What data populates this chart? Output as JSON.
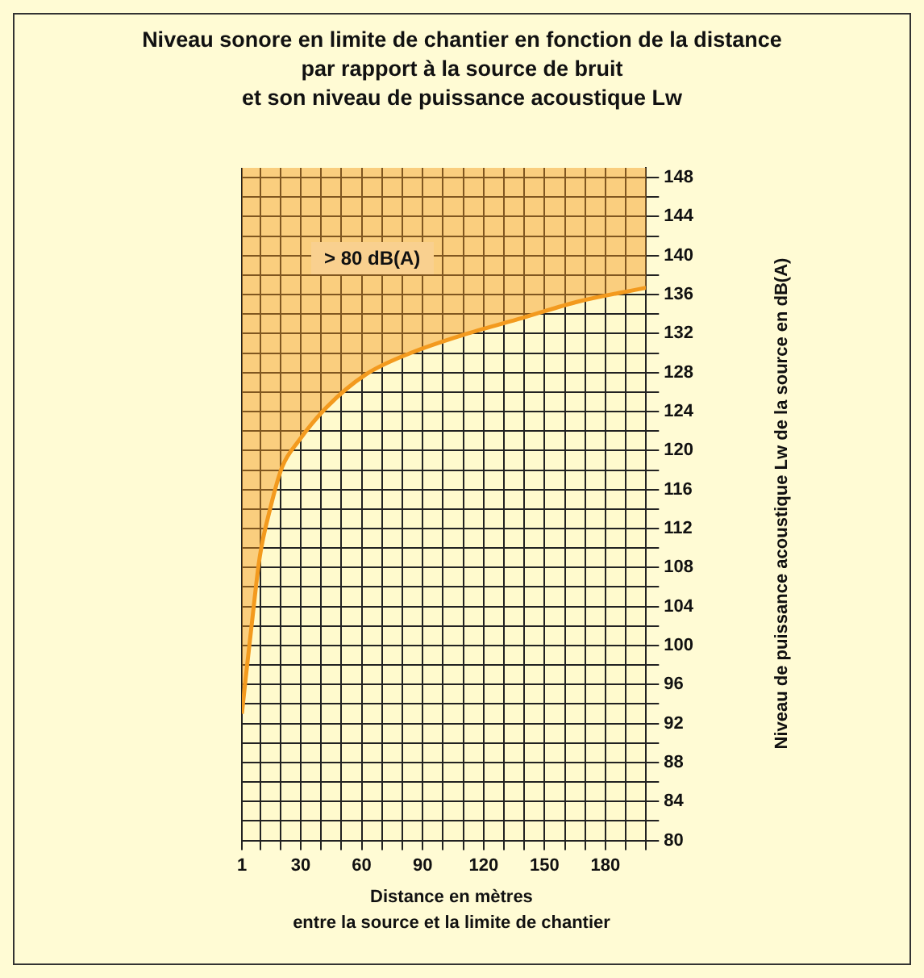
{
  "chart_data": {
    "type": "line",
    "title": "Niveau sonore en limite de chantier en fonction de la distance\npar rapport à la source de bruit\net son niveau de puissance acoustique Lw",
    "xlabel": "Distance en mètres\nentre la source et la limite de chantier",
    "ylabel": "Niveau de puissance acoustique Lw de la source en dB(A)",
    "annotations": [
      "> 80 dB(A)"
    ],
    "series": [
      {
        "color": "#f39a1e",
        "x": [
          1,
          3,
          5.7,
          9.8,
          15,
          20.8,
          29,
          43,
          62,
          84,
          112,
          139,
          167,
          200
        ],
        "values": [
          93,
          96.9,
          101.9,
          109.1,
          114.1,
          118.3,
          121,
          124.5,
          127.8,
          130,
          132,
          133.6,
          135.3,
          136.7
        ],
        "lower": [
          93,
          96.9,
          101.9,
          109.1,
          114.1,
          118.3,
          121,
          124.5,
          127.8,
          130,
          132,
          133.6,
          135.3,
          136.7
        ],
        "upper": [
          149,
          149,
          149,
          149,
          149,
          149,
          149,
          149,
          149,
          149,
          149,
          149,
          149,
          149
        ]
      }
    ],
    "xlim": [
      1,
      200
    ],
    "xticks": [
      1,
      {
        "value": 10,
        "label": null
      },
      {
        "value": 20,
        "label": null
      },
      30,
      {
        "value": 40,
        "label": null
      },
      {
        "value": 50,
        "label": null
      },
      60,
      {
        "value": 70,
        "label": null
      },
      {
        "value": 80,
        "label": null
      },
      90,
      {
        "value": 100,
        "label": null
      },
      {
        "value": 110,
        "label": null
      },
      120,
      {
        "value": 130,
        "label": null
      },
      {
        "value": 140,
        "label": null
      },
      150,
      {
        "value": 160,
        "label": null
      },
      {
        "value": 170,
        "label": null
      },
      180,
      {
        "value": 190,
        "label": null
      },
      {
        "value": 200,
        "label": null
      }
    ],
    "ylim": [
      80,
      149
    ],
    "yticks": [
      80,
      {
        "value": 82,
        "label": null
      },
      84,
      {
        "value": 86,
        "label": null
      },
      88,
      {
        "value": 90,
        "label": null
      },
      92,
      {
        "value": 94,
        "label": null
      },
      96,
      {
        "value": 98,
        "label": null
      },
      100,
      {
        "value": 102,
        "label": null
      },
      104,
      {
        "value": 106,
        "label": null
      },
      108,
      {
        "value": 110,
        "label": null
      },
      112,
      {
        "value": 114,
        "label": null
      },
      116,
      {
        "value": 118,
        "label": null
      },
      120,
      {
        "value": 122,
        "label": null
      },
      124,
      {
        "value": 126,
        "label": null
      },
      128,
      {
        "value": 130,
        "label": null
      },
      132,
      {
        "value": 134,
        "label": null
      },
      136,
      {
        "value": 138,
        "label": null
      },
      140,
      {
        "value": 142,
        "label": null
      },
      144,
      {
        "value": 146,
        "label": null
      },
      148
    ],
    "grid": true,
    "legend": false,
    "marker": "none",
    "line_style": "solid"
  }
}
